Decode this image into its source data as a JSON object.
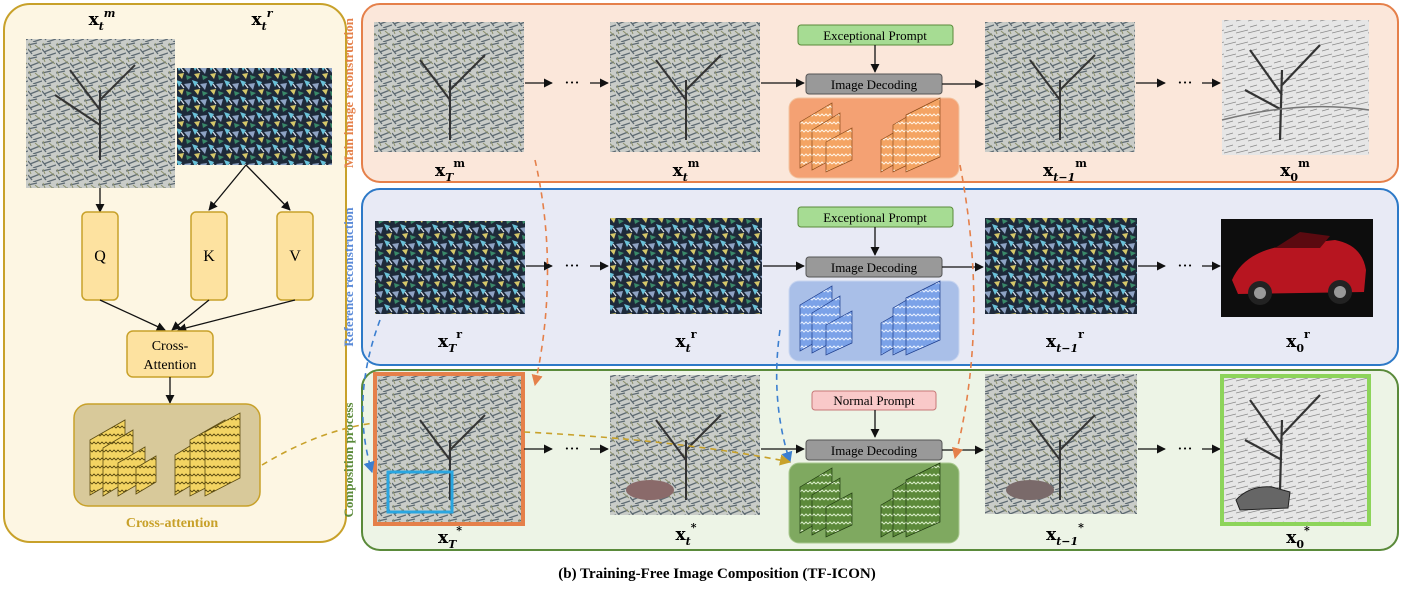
{
  "caption": "(b) Training-Free Image Composition (TF-ICON)",
  "left_panel": {
    "label_main": "x",
    "label_main_sub": "t",
    "label_main_sup": "m",
    "label_ref": "x",
    "label_ref_sub": "t",
    "label_ref_sup": "r",
    "q_label": "Q",
    "k_label": "K",
    "v_label": "V",
    "cross_attention_line1": "Cross-",
    "cross_attention_line2": "Attention",
    "footer": "Cross-attention"
  },
  "rows": {
    "main": {
      "side_label": "Main image reconstruction",
      "prompt": "Exceptional Prompt",
      "decoder": "Image Decoding",
      "sup": "m",
      "color": "#e5804a"
    },
    "reference": {
      "side_label": "Reference reconstruction",
      "prompt": "Exceptional Prompt",
      "decoder": "Image Decoding",
      "sup": "r",
      "color": "#2d79c7"
    },
    "composition": {
      "side_label": "Composition process",
      "prompt": "Normal Prompt",
      "decoder": "Image Decoding",
      "sup": "*",
      "color": "#5a8a3a"
    }
  },
  "image_labels": {
    "x": "x",
    "sub_T": "T",
    "sub_t": "t",
    "sub_t_minus_1": "t−1",
    "sub_0": "0"
  },
  "ellipsis": "···",
  "colors": {
    "left_border": "#c8a12a",
    "left_fill": "#fdf6e3",
    "qkv_fill": "#fde2a0",
    "qkv_border": "#c8a12a",
    "prompt_green": "#a6dc93",
    "prompt_pink": "#f9c9c9",
    "decoder_gray": "#999999"
  }
}
